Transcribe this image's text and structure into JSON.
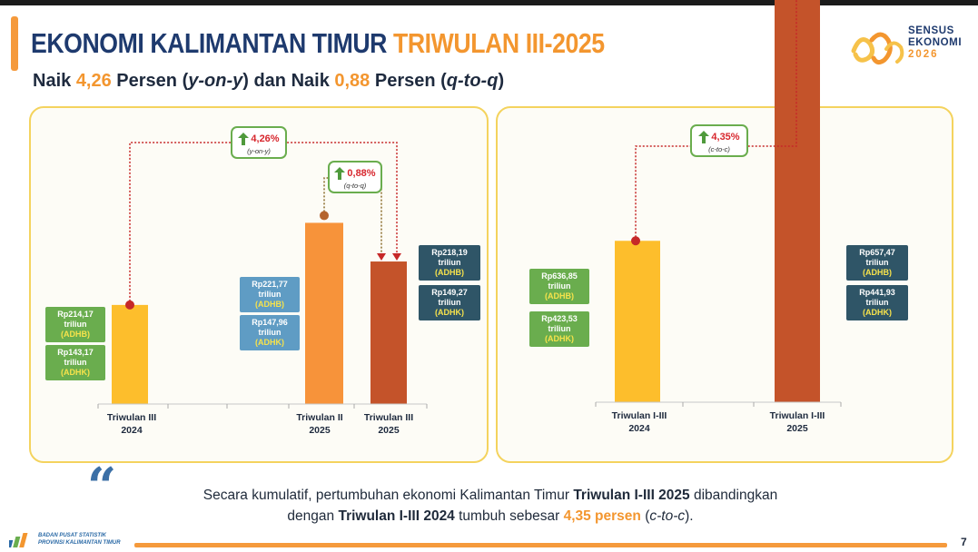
{
  "header": {
    "title_main": "EKONOMI KALIMANTAN TIMUR",
    "title_period": "TRIWULAN III-2025",
    "subtitle": {
      "p1": "Naik ",
      "v1": "4,26",
      "p2": " Persen (",
      "t1": "y-on-y",
      "p3": ") dan Naik ",
      "v2": "0,88",
      "p4": " Persen (",
      "t2": "q-to-q",
      "p5": ")"
    }
  },
  "logo": {
    "line1": "SENSUS",
    "line2": "EKONOMI",
    "line3": "2026"
  },
  "colors": {
    "q3_2024": "#fdbe2c",
    "q2_2025": "#f7933a",
    "q3_2025": "#c4532a",
    "green": "#6aad4e",
    "light_blue": "#5f9cc4",
    "dark_blue": "#2f5567",
    "red": "#c62828"
  },
  "chart_data": [
    {
      "type": "bar",
      "categories": [
        "Triwulan III 2024",
        "Triwulan II 2025",
        "Triwulan III 2025"
      ],
      "series": [
        {
          "name": "ADHB",
          "values": [
            214.17,
            221.77,
            218.19
          ]
        },
        {
          "name": "ADHK",
          "values": [
            143.17,
            147.96,
            149.27
          ]
        }
      ],
      "category_labels": [
        {
          "line1": "Triwulan III",
          "line2": "2024"
        },
        {
          "line1": "Triwulan II",
          "line2": "2025"
        },
        {
          "line1": "Triwulan III",
          "line2": "2025"
        }
      ],
      "value_boxes": [
        {
          "adhb": "Rp214,17",
          "adhk": "Rp143,17"
        },
        {
          "adhb": "Rp221,77",
          "adhk": "Rp147,96"
        },
        {
          "adhb": "Rp218,19",
          "adhk": "Rp149,27"
        }
      ],
      "unit": "triliun",
      "adhb_label": "(ADHB)",
      "adhk_label": "(ADHK)",
      "growth": [
        {
          "value": "4,26%",
          "label": "(y-on-y)"
        },
        {
          "value": "0,88%",
          "label": "(q-to-q)"
        }
      ]
    },
    {
      "type": "bar",
      "categories": [
        "Triwulan I-III 2024",
        "Triwulan I-III 2025"
      ],
      "series": [
        {
          "name": "ADHB",
          "values": [
            636.85,
            657.47
          ]
        },
        {
          "name": "ADHK",
          "values": [
            423.53,
            441.93
          ]
        }
      ],
      "category_labels": [
        {
          "line1": "Triwulan I-III",
          "line2": "2024"
        },
        {
          "line1": "Triwulan I-III",
          "line2": "2025"
        }
      ],
      "value_boxes": [
        {
          "adhb": "Rp636,85",
          "adhk": "Rp423,53"
        },
        {
          "adhb": "Rp657,47",
          "adhk": "Rp441,93"
        }
      ],
      "unit": "triliun",
      "adhb_label": "(ADHB)",
      "adhk_label": "(ADHK)",
      "growth": [
        {
          "value": "4,35%",
          "label": "(c-to-c)"
        }
      ]
    }
  ],
  "note": {
    "p1": "Secara kumulatif, pertumbuhan ekonomi Kalimantan Timur ",
    "b1": "Triwulan I-III 2025",
    "p2": " dibandingkan",
    "p3": "dengan ",
    "b2": "Triwulan I-III 2024",
    "p4": " tumbuh sebesar ",
    "hl": "4,35 persen",
    "p5": " (",
    "it": "c-to-c",
    "p6": ")."
  },
  "footer": {
    "org_line1": "BADAN PUSAT STATISTIK",
    "org_line2": "PROVINSI KALIMANTAN TIMUR",
    "page": "7"
  }
}
